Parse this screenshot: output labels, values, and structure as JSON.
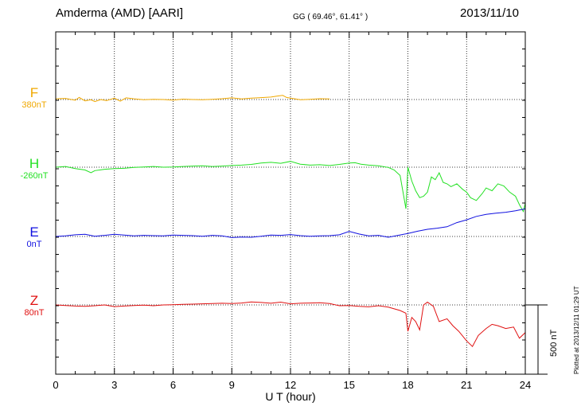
{
  "header": {
    "station": "Amderma (AMD)  [AARI]",
    "coordinates": "GG ( 69.46°,  61.41° )",
    "date": "2013/11/10"
  },
  "plotted_note": "Plotted at 2013/12/11 01:29 UT",
  "chart_data": {
    "type": "line",
    "xlabel": "U T (hour)",
    "xlim": [
      0,
      24
    ],
    "xticks": [
      0,
      3,
      6,
      9,
      12,
      15,
      18,
      21,
      24
    ],
    "xtick_labels": [
      "0",
      "3",
      "6",
      "9",
      "12",
      "15",
      "18",
      "21",
      "24"
    ],
    "grid": true,
    "scale_bar": {
      "label": "500 nT",
      "value": 500
    },
    "series": [
      {
        "name": "F",
        "baseline_label": "380nT",
        "baseline": 380,
        "color": "#f0a800",
        "x": [
          0.0,
          0.5,
          1.0,
          1.2,
          1.5,
          1.8,
          2.0,
          2.3,
          2.6,
          3.0,
          3.3,
          3.6,
          4.0,
          4.5,
          5.0,
          5.5,
          6.0,
          6.5,
          7.0,
          7.5,
          8.0,
          8.5,
          9.0,
          9.5,
          10.0,
          10.5,
          11.0,
          11.3,
          11.6,
          11.8,
          12.0,
          12.5,
          13.0,
          13.5,
          14.0
        ],
        "y": [
          385,
          388,
          375,
          395,
          370,
          378,
          365,
          380,
          372,
          390,
          368,
          392,
          385,
          378,
          382,
          380,
          376,
          383,
          380,
          378,
          382,
          386,
          392,
          384,
          390,
          394,
          398,
          404,
          410,
          395,
          390,
          378,
          382,
          386,
          384
        ]
      },
      {
        "name": "H",
        "baseline_label": "-260nT",
        "baseline": -260,
        "color": "#22e022",
        "x": [
          0.0,
          0.5,
          1.0,
          1.5,
          1.8,
          2.0,
          2.5,
          3.0,
          3.5,
          4.0,
          4.5,
          5.0,
          5.5,
          6.0,
          6.5,
          7.0,
          7.5,
          8.0,
          8.5,
          9.0,
          9.5,
          10.0,
          10.5,
          11.0,
          11.5,
          12.0,
          12.5,
          13.0,
          13.5,
          14.0,
          14.5,
          15.0,
          15.3,
          15.6,
          16.0,
          16.5,
          17.0,
          17.3,
          17.6,
          17.8,
          17.9,
          18.0,
          18.2,
          18.4,
          18.6,
          18.8,
          19.0,
          19.2,
          19.4,
          19.6,
          19.8,
          20.0,
          20.2,
          20.5,
          20.8,
          21.0,
          21.2,
          21.5,
          21.8,
          22.0,
          22.3,
          22.6,
          22.9,
          23.2,
          23.5,
          23.7,
          23.9,
          24.0
        ],
        "y": [
          -260,
          -255,
          -270,
          -280,
          -300,
          -285,
          -275,
          -270,
          -268,
          -262,
          -258,
          -255,
          -260,
          -258,
          -255,
          -252,
          -250,
          -255,
          -252,
          -248,
          -245,
          -240,
          -230,
          -225,
          -232,
          -218,
          -238,
          -245,
          -242,
          -248,
          -240,
          -230,
          -228,
          -238,
          -245,
          -250,
          -262,
          -280,
          -320,
          -480,
          -560,
          -260,
          -360,
          -430,
          -480,
          -470,
          -440,
          -330,
          -350,
          -300,
          -370,
          -380,
          -400,
          -380,
          -420,
          -440,
          -480,
          -500,
          -450,
          -410,
          -430,
          -380,
          -395,
          -440,
          -470,
          -530,
          -580,
          -520
        ]
      },
      {
        "name": "E",
        "baseline_label": "0nT",
        "baseline": 0,
        "color": "#1010e0",
        "x": [
          0.0,
          0.5,
          1.0,
          1.5,
          2.0,
          2.5,
          3.0,
          3.5,
          4.0,
          4.5,
          5.0,
          5.5,
          6.0,
          6.5,
          7.0,
          7.5,
          8.0,
          8.5,
          9.0,
          9.5,
          10.0,
          10.5,
          11.0,
          11.5,
          12.0,
          12.5,
          13.0,
          13.5,
          14.0,
          14.5,
          15.0,
          15.5,
          16.0,
          16.5,
          17.0,
          17.5,
          18.0,
          18.5,
          19.0,
          19.5,
          20.0,
          20.5,
          21.0,
          21.5,
          22.0,
          22.5,
          23.0,
          23.5,
          24.0
        ],
        "y": [
          0,
          4,
          12,
          16,
          2,
          8,
          16,
          10,
          4,
          8,
          6,
          4,
          10,
          8,
          6,
          2,
          8,
          4,
          -8,
          -4,
          -6,
          2,
          10,
          8,
          14,
          6,
          2,
          4,
          6,
          12,
          36,
          18,
          4,
          8,
          -6,
          8,
          22,
          38,
          52,
          60,
          70,
          100,
          120,
          145,
          160,
          168,
          175,
          185,
          200
        ]
      },
      {
        "name": "Z",
        "baseline_label": "80nT",
        "baseline": 80,
        "color": "#e01010",
        "x": [
          0.0,
          0.5,
          1.0,
          1.5,
          2.0,
          2.5,
          3.0,
          3.5,
          4.0,
          4.5,
          5.0,
          5.5,
          6.0,
          6.5,
          7.0,
          7.5,
          8.0,
          8.5,
          9.0,
          9.5,
          10.0,
          10.5,
          11.0,
          11.5,
          12.0,
          12.5,
          13.0,
          13.5,
          14.0,
          14.5,
          15.0,
          15.5,
          16.0,
          16.5,
          17.0,
          17.3,
          17.6,
          17.9,
          18.0,
          18.2,
          18.4,
          18.6,
          18.8,
          19.0,
          19.3,
          19.6,
          20.0,
          20.3,
          20.6,
          21.0,
          21.3,
          21.6,
          22.0,
          22.3,
          22.6,
          23.0,
          23.4,
          23.7,
          24.0
        ],
        "y": [
          80,
          76,
          72,
          70,
          74,
          80,
          68,
          72,
          76,
          78,
          74,
          80,
          82,
          84,
          86,
          88,
          90,
          92,
          90,
          94,
          102,
          98,
          92,
          100,
          88,
          92,
          94,
          96,
          90,
          74,
          76,
          70,
          66,
          74,
          64,
          52,
          40,
          20,
          -110,
          -10,
          -40,
          -100,
          80,
          100,
          70,
          -40,
          -20,
          -70,
          -110,
          -180,
          -220,
          -140,
          -90,
          -60,
          -70,
          -90,
          -80,
          -160,
          -120
        ]
      }
    ]
  }
}
